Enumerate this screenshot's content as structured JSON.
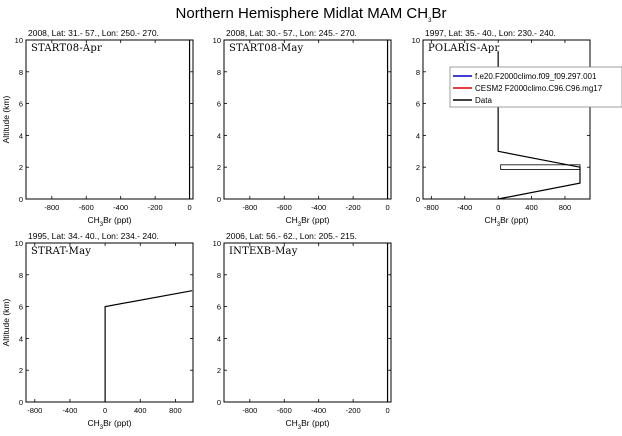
{
  "title_main": "Northern Hemisphere Midlat MAM CH",
  "title_sub": "3",
  "title_tail": "Br",
  "xlabel_main": "CH",
  "xlabel_sub": "3",
  "xlabel_tail": "Br (ppt)",
  "ylabel": "Altitude (km)",
  "chart_data": [
    {
      "type": "line",
      "header": "2008, Lat:  31.- 57., Lon: 250.- 270.",
      "caption": "START08-Apr",
      "xlim": [
        -950,
        20
      ],
      "ylim": [
        0,
        10
      ],
      "xticks": [
        -800,
        -600,
        -400,
        -200,
        0
      ],
      "yticks": [
        0,
        2,
        4,
        6,
        8,
        10
      ],
      "series": [
        {
          "points": [
            [
              0,
              0
            ],
            [
              0,
              10
            ]
          ],
          "color": "#000000"
        }
      ]
    },
    {
      "type": "line",
      "header": "2008, Lat:  30.- 57., Lon: 245.- 270.",
      "caption": "START08-May",
      "xlim": [
        -950,
        20
      ],
      "ylim": [
        0,
        10
      ],
      "xticks": [
        -800,
        -600,
        -400,
        -200,
        0
      ],
      "yticks": [
        0,
        2,
        4,
        6,
        8,
        10
      ],
      "series": [
        {
          "points": [
            [
              0,
              0
            ],
            [
              0,
              10
            ]
          ],
          "color": "#000000"
        }
      ]
    },
    {
      "type": "line",
      "header": "1997, Lat: 35.- 40., Lon: 230.- 240.",
      "caption": "POLARIS-Apr",
      "xlim": [
        -900,
        1100
      ],
      "ylim": [
        0,
        10
      ],
      "xticks": [
        -800,
        -400,
        0,
        400,
        800
      ],
      "yticks": [
        0,
        2,
        4,
        6,
        8,
        10
      ],
      "legend": {
        "placement": "top-right",
        "entries": [
          {
            "label": "f.e20.F2000climo.f09_f09.297.001",
            "color": "#0000cc"
          },
          {
            "label": "CESM2 F2000climo.C96.C96.mg17",
            "color": "#dd0000"
          },
          {
            "label": "Data",
            "color": "#000000"
          }
        ]
      },
      "series": [
        {
          "points": [
            [
              0,
              9.3
            ],
            [
              0,
              3
            ],
            [
              980,
              2
            ],
            [
              980,
              1
            ],
            [
              0,
              0
            ]
          ],
          "color": "#000000"
        }
      ],
      "box": {
        "x0": 30,
        "x1": 980,
        "y0": 1.85,
        "y1": 2.15
      }
    },
    {
      "type": "line",
      "header": "1995, Lat: 34.- 40., Lon: 234.- 240.",
      "caption": "STRAT-May",
      "xlim": [
        -900,
        1000
      ],
      "ylim": [
        0,
        10
      ],
      "xticks": [
        -800,
        -400,
        0,
        400,
        800
      ],
      "yticks": [
        0,
        2,
        4,
        6,
        8,
        10
      ],
      "series": [
        {
          "points": [
            [
              0,
              0
            ],
            [
              0,
              6
            ],
            [
              990,
              7
            ]
          ],
          "color": "#000000"
        }
      ]
    },
    {
      "type": "line",
      "header": "2006, Lat: 56.- 62., Lon: 205.- 215.",
      "caption": "INTEXB-May",
      "xlim": [
        -950,
        20
      ],
      "ylim": [
        0,
        10
      ],
      "xticks": [
        -800,
        -600,
        -400,
        -200,
        0
      ],
      "yticks": [
        0,
        2,
        4,
        6,
        8,
        10
      ],
      "series": [
        {
          "points": [
            [
              0,
              0
            ],
            [
              0,
              10
            ]
          ],
          "color": "#000000"
        }
      ]
    }
  ]
}
